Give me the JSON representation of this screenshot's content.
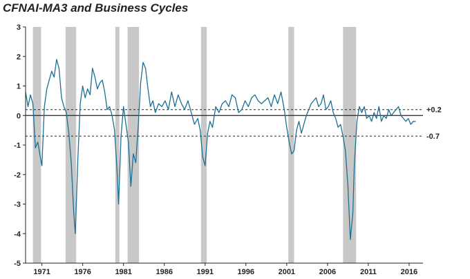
{
  "chart_data": {
    "type": "line",
    "title": "CFNAI-MA3 and Business Cycles",
    "xlabel": "",
    "ylabel": "",
    "ylim": [
      -5,
      3
    ],
    "xlim": [
      1969.0,
      2017.7
    ],
    "yticks": [
      3,
      2,
      1,
      0,
      -1,
      -2,
      -3,
      -4,
      -5
    ],
    "xticks": [
      1971,
      1976,
      1981,
      1986,
      1991,
      1996,
      2001,
      2006,
      2011,
      2016
    ],
    "grid": false,
    "reference_lines": [
      {
        "value": 0.2,
        "label": "+0.2",
        "style": "dashed"
      },
      {
        "value": 0,
        "label": "",
        "style": "solid"
      },
      {
        "value": -0.7,
        "label": "-0.7",
        "style": "dashed"
      }
    ],
    "recessions": [
      {
        "start": 1969.9,
        "end": 1970.9
      },
      {
        "start": 1973.9,
        "end": 1975.2
      },
      {
        "start": 1980.0,
        "end": 1980.5
      },
      {
        "start": 1981.5,
        "end": 1982.9
      },
      {
        "start": 1990.5,
        "end": 1991.2
      },
      {
        "start": 2001.2,
        "end": 2001.9
      },
      {
        "start": 2007.9,
        "end": 2009.5
      }
    ],
    "series": [
      {
        "color": "#1b6e94",
        "x": [
          1969.0,
          1969.3,
          1969.6,
          1969.9,
          1970.2,
          1970.5,
          1970.8,
          1971.0,
          1971.3,
          1971.6,
          1971.9,
          1972.2,
          1972.5,
          1972.8,
          1973.1,
          1973.4,
          1973.7,
          1974.0,
          1974.3,
          1974.6,
          1974.9,
          1975.1,
          1975.4,
          1975.7,
          1976.0,
          1976.3,
          1976.6,
          1976.9,
          1977.2,
          1977.5,
          1977.8,
          1978.1,
          1978.4,
          1978.7,
          1979.0,
          1979.3,
          1979.6,
          1979.9,
          1980.2,
          1980.4,
          1980.7,
          1981.0,
          1981.3,
          1981.6,
          1981.9,
          1982.2,
          1982.5,
          1982.8,
          1983.1,
          1983.4,
          1983.7,
          1984.0,
          1984.3,
          1984.6,
          1984.9,
          1985.3,
          1985.7,
          1986.1,
          1986.5,
          1986.9,
          1987.3,
          1987.7,
          1988.1,
          1988.5,
          1988.9,
          1989.3,
          1989.7,
          1990.1,
          1990.4,
          1990.7,
          1991.0,
          1991.3,
          1991.6,
          1991.9,
          1992.3,
          1992.7,
          1993.1,
          1993.5,
          1993.9,
          1994.3,
          1994.7,
          1995.1,
          1995.5,
          1995.9,
          1996.3,
          1996.7,
          1997.1,
          1997.5,
          1997.9,
          1998.3,
          1998.7,
          1999.1,
          1999.5,
          1999.9,
          2000.3,
          2000.7,
          2001.0,
          2001.3,
          2001.6,
          2001.9,
          2002.2,
          2002.5,
          2002.8,
          2003.1,
          2003.4,
          2003.7,
          2004.0,
          2004.3,
          2004.6,
          2004.9,
          2005.2,
          2005.5,
          2005.8,
          2006.1,
          2006.4,
          2006.7,
          2007.0,
          2007.3,
          2007.6,
          2007.9,
          2008.2,
          2008.5,
          2008.8,
          2009.1,
          2009.3,
          2009.6,
          2009.9,
          2010.2,
          2010.5,
          2010.8,
          2011.1,
          2011.4,
          2011.7,
          2012.0,
          2012.3,
          2012.6,
          2012.9,
          2013.2,
          2013.5,
          2013.8,
          2014.1,
          2014.4,
          2014.7,
          2015.0,
          2015.3,
          2015.6,
          2015.9,
          2016.2,
          2016.5,
          2016.8
        ],
        "y": [
          0.8,
          0.3,
          0.7,
          0.4,
          -1.1,
          -0.9,
          -1.4,
          -1.7,
          0.3,
          0.9,
          1.2,
          1.5,
          1.3,
          1.9,
          1.6,
          0.6,
          0.3,
          0.1,
          -0.6,
          -1.6,
          -3.3,
          -4.0,
          -1.5,
          0.4,
          1.0,
          0.6,
          0.9,
          0.7,
          1.6,
          1.3,
          0.9,
          1.1,
          1.2,
          0.8,
          0.2,
          0.3,
          0.0,
          -0.5,
          -1.8,
          -3.0,
          -0.7,
          0.3,
          -0.3,
          -0.9,
          -2.4,
          -1.3,
          -1.6,
          -0.4,
          1.1,
          1.8,
          1.6,
          0.9,
          0.3,
          0.5,
          0.1,
          0.4,
          0.3,
          0.5,
          0.2,
          0.8,
          0.3,
          0.7,
          0.4,
          0.2,
          0.5,
          0.1,
          -0.3,
          -0.1,
          -0.5,
          -1.4,
          -1.7,
          -0.6,
          -0.2,
          -0.4,
          0.3,
          0.1,
          0.4,
          0.5,
          0.3,
          0.7,
          0.6,
          0.1,
          0.2,
          0.5,
          0.3,
          0.6,
          0.7,
          0.5,
          0.4,
          0.5,
          0.6,
          0.3,
          0.7,
          0.4,
          0.8,
          0.2,
          -0.4,
          -0.9,
          -1.3,
          -1.2,
          -0.5,
          -0.2,
          -0.6,
          -0.3,
          0.0,
          0.2,
          0.4,
          0.5,
          0.6,
          0.3,
          0.4,
          0.7,
          0.2,
          0.3,
          0.5,
          0.1,
          -0.1,
          -0.4,
          -0.3,
          -0.7,
          -1.2,
          -2.4,
          -4.2,
          -3.3,
          -1.6,
          -0.2,
          0.3,
          0.1,
          0.3,
          -0.1,
          0.0,
          -0.2,
          0.1,
          -0.1,
          0.3,
          -0.2,
          0.0,
          -0.1,
          0.2,
          0.0,
          0.1,
          0.2,
          0.3,
          0.0,
          -0.1,
          -0.2,
          -0.1,
          -0.3,
          -0.2,
          -0.2
        ]
      }
    ]
  }
}
